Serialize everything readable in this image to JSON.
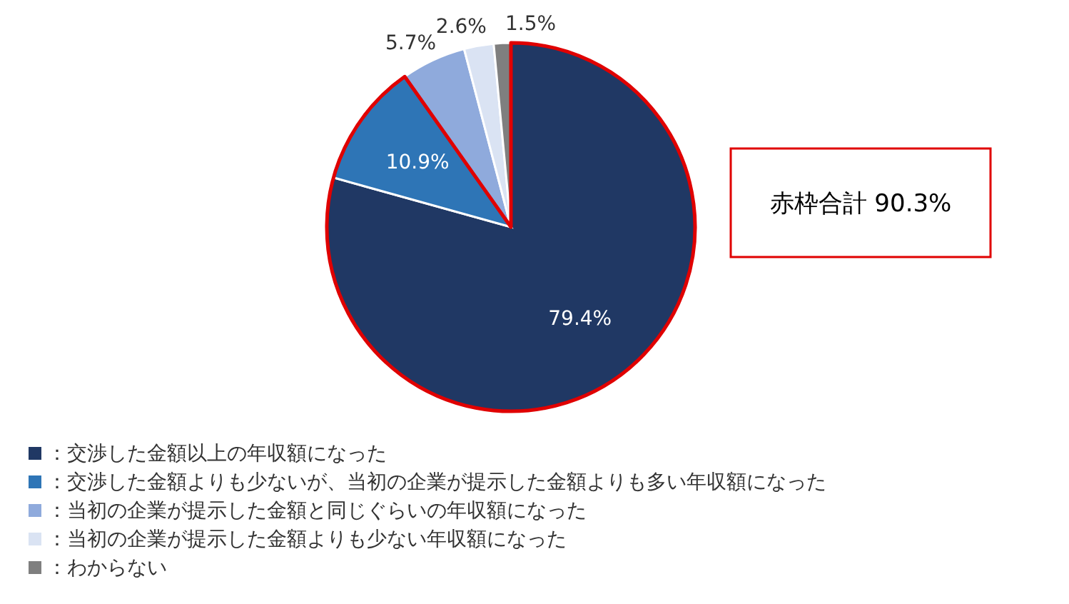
{
  "chart_data": {
    "type": "pie",
    "categories": [
      "：交渉した金額以上の年収額になった",
      "：交渉した金額よりも少ないが、当初の企業が提示した金額よりも多い年収額になった",
      "：当初の企業が提示した金額と同じぐらいの年収額になった",
      "：当初の企業が提示した金額よりも少ない年収額になった",
      "：わからない"
    ],
    "values": [
      79.4,
      10.9,
      5.7,
      2.6,
      1.5
    ],
    "colors": [
      "#203864",
      "#2e75b6",
      "#8faadc",
      "#dae3f3",
      "#7f7f7f"
    ],
    "value_labels": [
      "79.4%",
      "10.9%",
      "5.7%",
      "2.6%",
      "1.5%"
    ],
    "legend": "bottom left",
    "annotations": [
      "赤枠合計 90.3%"
    ]
  }
}
